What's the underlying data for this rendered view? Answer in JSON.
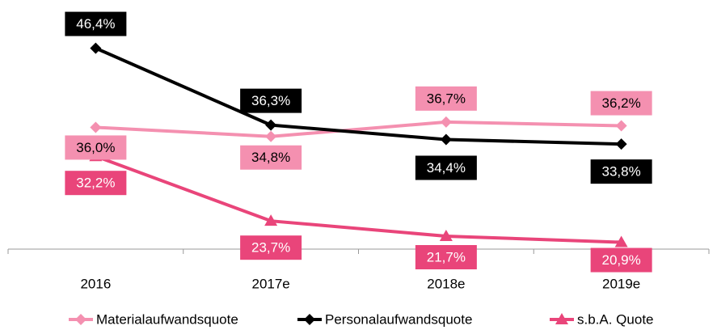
{
  "chart_data": {
    "type": "line",
    "categories": [
      "2016",
      "2017e",
      "2018e",
      "2019e"
    ],
    "ylim": [
      20,
      50
    ],
    "series": [
      {
        "name": "Materialaufwandsquote",
        "color": "#f490b0",
        "marker": "diamond",
        "label_text_color": "#000000",
        "values": [
          36.0,
          34.8,
          36.7,
          36.2
        ],
        "value_labels": [
          "36,0%",
          "34,8%",
          "36,7%",
          "36,2%"
        ]
      },
      {
        "name": "Personalaufwandsquote",
        "color": "#000000",
        "marker": "diamond",
        "label_text_color": "#ffffff",
        "values": [
          46.4,
          36.3,
          34.4,
          33.8
        ],
        "value_labels": [
          "46,4%",
          "36,3%",
          "34,4%",
          "33,8%"
        ]
      },
      {
        "name": "s.b.A. Quote",
        "color": "#e9457a",
        "marker": "triangle",
        "label_text_color": "#ffffff",
        "values": [
          32.2,
          23.7,
          21.7,
          20.9
        ],
        "value_labels": [
          "32,2%",
          "23,7%",
          "21,7%",
          "20,9%"
        ]
      }
    ]
  }
}
